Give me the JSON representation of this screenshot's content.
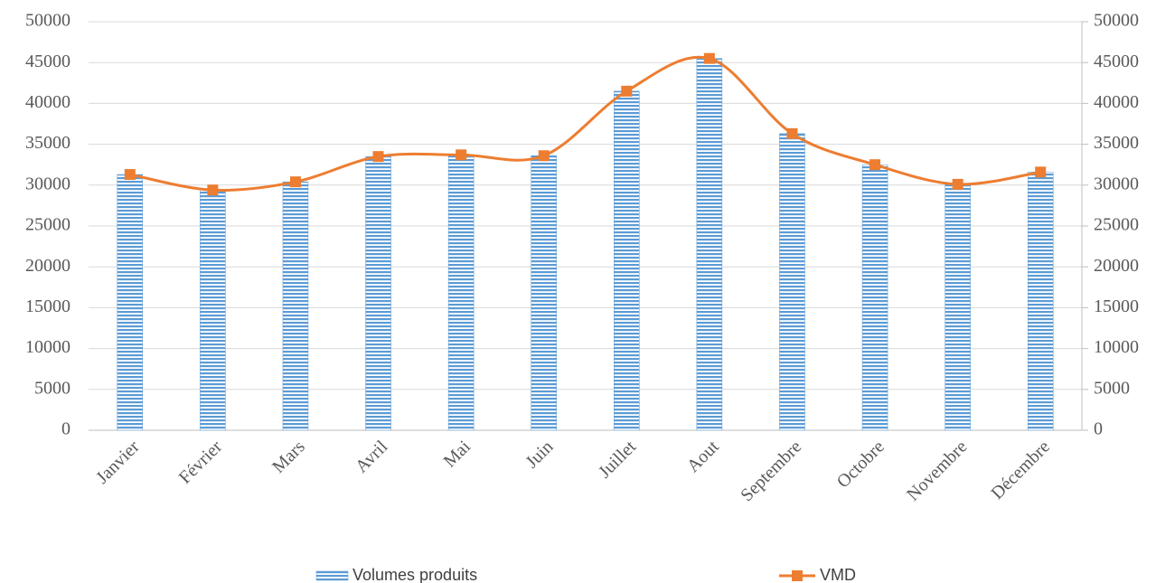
{
  "chart_data": {
    "type": "combo",
    "categories": [
      "Janvier",
      "Février",
      "Mars",
      "Avril",
      "Mai",
      "Juin",
      "Juillet",
      "Aout",
      "Septembre",
      "Octobre",
      "Novembre",
      "Décembre"
    ],
    "series": [
      {
        "name": "Volumes produits",
        "type": "bar",
        "color": "#5b9bd5",
        "values": [
          31300,
          29400,
          30400,
          33500,
          33700,
          33600,
          41500,
          45500,
          36300,
          32500,
          30100,
          31600
        ]
      },
      {
        "name": "VMD",
        "type": "line",
        "axis": "y2",
        "color": "#ed7d31",
        "values": [
          31300,
          29400,
          30400,
          33500,
          33700,
          33600,
          41500,
          45500,
          36300,
          32500,
          30100,
          31600
        ]
      }
    ],
    "ylim": [
      0,
      50000
    ],
    "yticks": [
      0,
      5000,
      10000,
      15000,
      20000,
      25000,
      30000,
      35000,
      40000,
      45000,
      50000
    ],
    "y2lim": [
      0,
      50000
    ],
    "y2ticks": [
      0,
      5000,
      10000,
      15000,
      20000,
      25000,
      30000,
      35000,
      40000,
      45000,
      50000
    ],
    "grid": true,
    "legend": "bottom"
  }
}
